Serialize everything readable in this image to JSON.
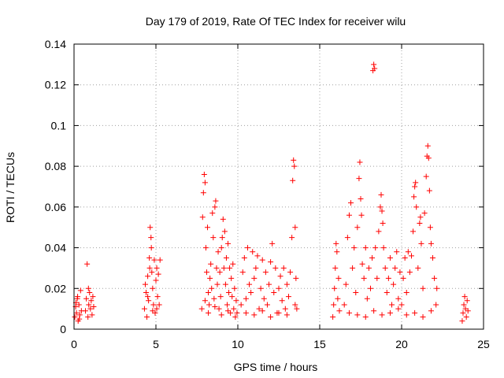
{
  "chart_data": {
    "type": "scatter",
    "title": "Day 179 of 2019, Rate Of TEC Index for receiver wilu",
    "xlabel": "GPS time / hours",
    "ylabel": "ROTI / TECUs",
    "xlim": [
      0,
      25
    ],
    "ylim": [
      0,
      0.14
    ],
    "xticks": [
      0,
      5,
      10,
      15,
      20,
      25
    ],
    "xtick_labels": [
      "0",
      "5",
      "10",
      "15",
      "20",
      "25"
    ],
    "yticks": [
      0,
      0.02,
      0.04,
      0.06,
      0.08,
      0.1,
      0.12,
      0.14
    ],
    "ytick_labels": [
      "0",
      "0.02",
      "0.04",
      "0.06",
      "0.08",
      "0.1",
      "0.12",
      "0.14"
    ],
    "grid": true,
    "marker": "+",
    "color": "#ff0000",
    "series": [
      {
        "name": "ROTI",
        "points": [
          [
            0.05,
            0.006
          ],
          [
            0.1,
            0.011
          ],
          [
            0.15,
            0.008
          ],
          [
            0.2,
            0.015
          ],
          [
            0.25,
            0.004
          ],
          [
            0.3,
            0.012
          ],
          [
            0.35,
            0.007
          ],
          [
            0.4,
            0.019
          ],
          [
            0.45,
            0.009
          ],
          [
            0.12,
            0.013
          ],
          [
            0.22,
            0.016
          ],
          [
            0.32,
            0.005
          ],
          [
            0.7,
            0.009
          ],
          [
            0.75,
            0.015
          ],
          [
            0.8,
            0.032
          ],
          [
            0.85,
            0.006
          ],
          [
            0.9,
            0.012
          ],
          [
            0.95,
            0.018
          ],
          [
            1.0,
            0.01
          ],
          [
            1.05,
            0.014
          ],
          [
            1.1,
            0.007
          ],
          [
            1.15,
            0.016
          ],
          [
            1.2,
            0.011
          ],
          [
            0.88,
            0.02
          ],
          [
            4.3,
            0.01
          ],
          [
            4.35,
            0.022
          ],
          [
            4.4,
            0.018
          ],
          [
            4.45,
            0.006
          ],
          [
            4.5,
            0.026
          ],
          [
            4.55,
            0.014
          ],
          [
            4.6,
            0.035
          ],
          [
            4.62,
            0.03
          ],
          [
            4.65,
            0.05
          ],
          [
            4.7,
            0.045
          ],
          [
            4.72,
            0.04
          ],
          [
            4.75,
            0.028
          ],
          [
            4.8,
            0.02
          ],
          [
            4.85,
            0.012
          ],
          [
            4.9,
            0.034
          ],
          [
            4.95,
            0.008
          ],
          [
            5.0,
            0.024
          ],
          [
            5.05,
            0.03
          ],
          [
            5.1,
            0.016
          ],
          [
            5.15,
            0.027
          ],
          [
            5.2,
            0.012
          ],
          [
            5.25,
            0.034
          ],
          [
            4.5,
            0.016
          ],
          [
            4.8,
            0.009
          ],
          [
            5.05,
            0.01
          ],
          [
            7.8,
            0.01
          ],
          [
            7.85,
            0.055
          ],
          [
            7.9,
            0.067
          ],
          [
            7.95,
            0.076
          ],
          [
            8.0,
            0.072
          ],
          [
            8.05,
            0.04
          ],
          [
            8.1,
            0.028
          ],
          [
            8.15,
            0.05
          ],
          [
            8.2,
            0.018
          ],
          [
            8.25,
            0.012
          ],
          [
            8.3,
            0.025
          ],
          [
            8.35,
            0.032
          ],
          [
            8.4,
            0.02
          ],
          [
            8.45,
            0.057
          ],
          [
            8.5,
            0.045
          ],
          [
            8.55,
            0.015
          ],
          [
            8.6,
            0.06
          ],
          [
            8.65,
            0.063
          ],
          [
            8.7,
            0.03
          ],
          [
            8.75,
            0.022
          ],
          [
            8.8,
            0.038
          ],
          [
            8.85,
            0.01
          ],
          [
            8.9,
            0.028
          ],
          [
            8.95,
            0.016
          ],
          [
            9.0,
            0.04
          ],
          [
            9.05,
            0.045
          ],
          [
            9.1,
            0.054
          ],
          [
            9.15,
            0.03
          ],
          [
            9.2,
            0.048
          ],
          [
            9.25,
            0.022
          ],
          [
            9.3,
            0.035
          ],
          [
            9.35,
            0.012
          ],
          [
            9.4,
            0.042
          ],
          [
            9.45,
            0.018
          ],
          [
            9.5,
            0.03
          ],
          [
            9.55,
            0.008
          ],
          [
            9.6,
            0.025
          ],
          [
            9.65,
            0.016
          ],
          [
            9.7,
            0.032
          ],
          [
            9.75,
            0.01
          ],
          [
            9.8,
            0.02
          ],
          [
            9.85,
            0.006
          ],
          [
            9.9,
            0.014
          ],
          [
            9.95,
            0.008
          ],
          [
            8.2,
            0.008
          ],
          [
            8.6,
            0.011
          ],
          [
            9.0,
            0.007
          ],
          [
            9.4,
            0.009
          ],
          [
            8.0,
            0.014
          ],
          [
            10.2,
            0.012
          ],
          [
            10.3,
            0.028
          ],
          [
            10.4,
            0.035
          ],
          [
            10.5,
            0.015
          ],
          [
            10.6,
            0.04
          ],
          [
            10.7,
            0.022
          ],
          [
            10.8,
            0.018
          ],
          [
            10.9,
            0.038
          ],
          [
            11.0,
            0.025
          ],
          [
            11.1,
            0.03
          ],
          [
            11.2,
            0.036
          ],
          [
            11.3,
            0.01
          ],
          [
            11.4,
            0.02
          ],
          [
            11.5,
            0.034
          ],
          [
            11.6,
            0.015
          ],
          [
            11.7,
            0.028
          ],
          [
            11.8,
            0.012
          ],
          [
            11.9,
            0.022
          ],
          [
            12.0,
            0.033
          ],
          [
            12.1,
            0.042
          ],
          [
            12.2,
            0.018
          ],
          [
            12.3,
            0.03
          ],
          [
            12.4,
            0.008
          ],
          [
            12.5,
            0.02
          ],
          [
            12.6,
            0.026
          ],
          [
            12.7,
            0.014
          ],
          [
            12.8,
            0.03
          ],
          [
            12.9,
            0.01
          ],
          [
            13.0,
            0.022
          ],
          [
            13.1,
            0.016
          ],
          [
            13.2,
            0.028
          ],
          [
            13.3,
            0.045
          ],
          [
            13.35,
            0.073
          ],
          [
            13.4,
            0.083
          ],
          [
            13.45,
            0.08
          ],
          [
            13.5,
            0.05
          ],
          [
            13.55,
            0.025
          ],
          [
            13.6,
            0.01
          ],
          [
            10.5,
            0.008
          ],
          [
            11.0,
            0.007
          ],
          [
            11.5,
            0.009
          ],
          [
            12.0,
            0.006
          ],
          [
            12.5,
            0.008
          ],
          [
            13.0,
            0.007
          ],
          [
            13.5,
            0.012
          ],
          [
            15.8,
            0.006
          ],
          [
            15.85,
            0.012
          ],
          [
            15.9,
            0.02
          ],
          [
            15.95,
            0.03
          ],
          [
            16.0,
            0.042
          ],
          [
            16.05,
            0.038
          ],
          [
            16.1,
            0.015
          ],
          [
            16.15,
            0.025
          ],
          [
            16.2,
            0.009
          ],
          [
            16.5,
            0.012
          ],
          [
            16.6,
            0.022
          ],
          [
            16.7,
            0.045
          ],
          [
            16.8,
            0.056
          ],
          [
            16.9,
            0.062
          ],
          [
            17.0,
            0.03
          ],
          [
            17.1,
            0.04
          ],
          [
            17.2,
            0.018
          ],
          [
            17.3,
            0.05
          ],
          [
            17.4,
            0.074
          ],
          [
            17.45,
            0.082
          ],
          [
            17.5,
            0.064
          ],
          [
            17.55,
            0.056
          ],
          [
            17.6,
            0.032
          ],
          [
            17.7,
            0.025
          ],
          [
            17.8,
            0.04
          ],
          [
            17.9,
            0.015
          ],
          [
            18.0,
            0.03
          ],
          [
            18.1,
            0.02
          ],
          [
            18.2,
            0.035
          ],
          [
            18.25,
            0.127
          ],
          [
            18.3,
            0.13
          ],
          [
            18.35,
            0.128
          ],
          [
            18.4,
            0.04
          ],
          [
            18.5,
            0.025
          ],
          [
            18.6,
            0.048
          ],
          [
            18.7,
            0.06
          ],
          [
            18.75,
            0.066
          ],
          [
            18.8,
            0.058
          ],
          [
            18.85,
            0.052
          ],
          [
            18.9,
            0.04
          ],
          [
            19.0,
            0.03
          ],
          [
            19.1,
            0.018
          ],
          [
            19.2,
            0.025
          ],
          [
            19.3,
            0.035
          ],
          [
            19.4,
            0.012
          ],
          [
            19.5,
            0.022
          ],
          [
            19.6,
            0.03
          ],
          [
            19.7,
            0.038
          ],
          [
            19.8,
            0.015
          ],
          [
            19.9,
            0.028
          ],
          [
            16.8,
            0.008
          ],
          [
            17.3,
            0.007
          ],
          [
            17.8,
            0.006
          ],
          [
            18.3,
            0.009
          ],
          [
            18.8,
            0.007
          ],
          [
            19.3,
            0.008
          ],
          [
            19.8,
            0.01
          ],
          [
            20.0,
            0.012
          ],
          [
            20.1,
            0.025
          ],
          [
            20.2,
            0.035
          ],
          [
            20.3,
            0.018
          ],
          [
            20.4,
            0.038
          ],
          [
            20.5,
            0.028
          ],
          [
            20.6,
            0.036
          ],
          [
            20.7,
            0.048
          ],
          [
            20.75,
            0.065
          ],
          [
            20.8,
            0.07
          ],
          [
            20.85,
            0.072
          ],
          [
            20.9,
            0.06
          ],
          [
            21.0,
            0.03
          ],
          [
            21.1,
            0.052
          ],
          [
            21.15,
            0.055
          ],
          [
            21.2,
            0.042
          ],
          [
            21.3,
            0.02
          ],
          [
            21.4,
            0.057
          ],
          [
            21.5,
            0.075
          ],
          [
            21.55,
            0.085
          ],
          [
            21.6,
            0.09
          ],
          [
            21.65,
            0.084
          ],
          [
            21.7,
            0.068
          ],
          [
            21.75,
            0.05
          ],
          [
            21.8,
            0.042
          ],
          [
            21.9,
            0.035
          ],
          [
            22.0,
            0.025
          ],
          [
            22.1,
            0.012
          ],
          [
            22.15,
            0.02
          ],
          [
            20.3,
            0.007
          ],
          [
            20.8,
            0.008
          ],
          [
            21.3,
            0.006
          ],
          [
            21.8,
            0.009
          ],
          [
            23.7,
            0.004
          ],
          [
            23.75,
            0.008
          ],
          [
            23.8,
            0.012
          ],
          [
            23.85,
            0.016
          ],
          [
            23.9,
            0.01
          ],
          [
            23.95,
            0.006
          ],
          [
            24.0,
            0.014
          ],
          [
            24.05,
            0.009
          ]
        ]
      }
    ]
  }
}
